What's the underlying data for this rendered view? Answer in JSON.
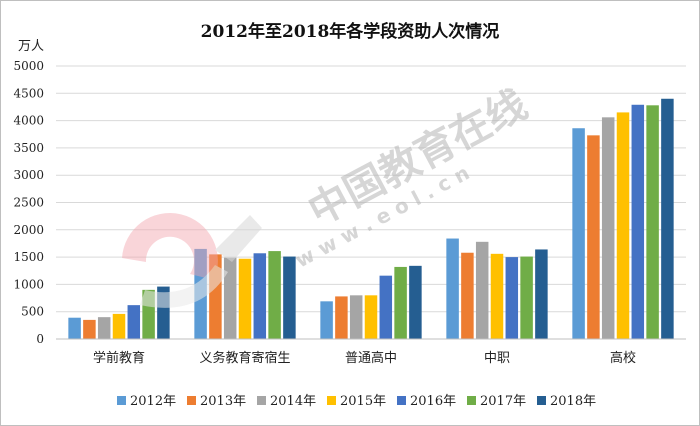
{
  "chart_data": {
    "type": "bar",
    "title": "2012年至2018年各学段资助人次情况",
    "ylabel": "万人",
    "xlabel": "",
    "ylim": [
      0,
      5000
    ],
    "yticks": [
      0,
      500,
      1000,
      1500,
      2000,
      2500,
      3000,
      3500,
      4000,
      4500,
      5000
    ],
    "grid": true,
    "legend_position": "bottom",
    "categories": [
      "学前教育",
      "义务教育寄宿生",
      "普通高中",
      "中职",
      "高校"
    ],
    "series": [
      {
        "name": "2012年",
        "color": "#5b9bd5",
        "values": [
          390,
          1650,
          690,
          1840,
          3860
        ]
      },
      {
        "name": "2013年",
        "color": "#ed7d31",
        "values": [
          350,
          1550,
          780,
          1580,
          3730
        ]
      },
      {
        "name": "2014年",
        "color": "#a5a5a5",
        "values": [
          400,
          1490,
          800,
          1780,
          4060
        ]
      },
      {
        "name": "2015年",
        "color": "#ffc000",
        "values": [
          460,
          1470,
          800,
          1560,
          4150
        ]
      },
      {
        "name": "2016年",
        "color": "#4472c4",
        "values": [
          620,
          1570,
          1160,
          1500,
          4290
        ]
      },
      {
        "name": "2017年",
        "color": "#70ad47",
        "values": [
          900,
          1610,
          1320,
          1510,
          4280
        ]
      },
      {
        "name": "2018年",
        "color": "#255e91",
        "values": [
          960,
          1510,
          1340,
          1640,
          4400
        ]
      }
    ]
  },
  "watermark": {
    "text": "中国教育在线",
    "url": "w w w . e o l . c n"
  }
}
